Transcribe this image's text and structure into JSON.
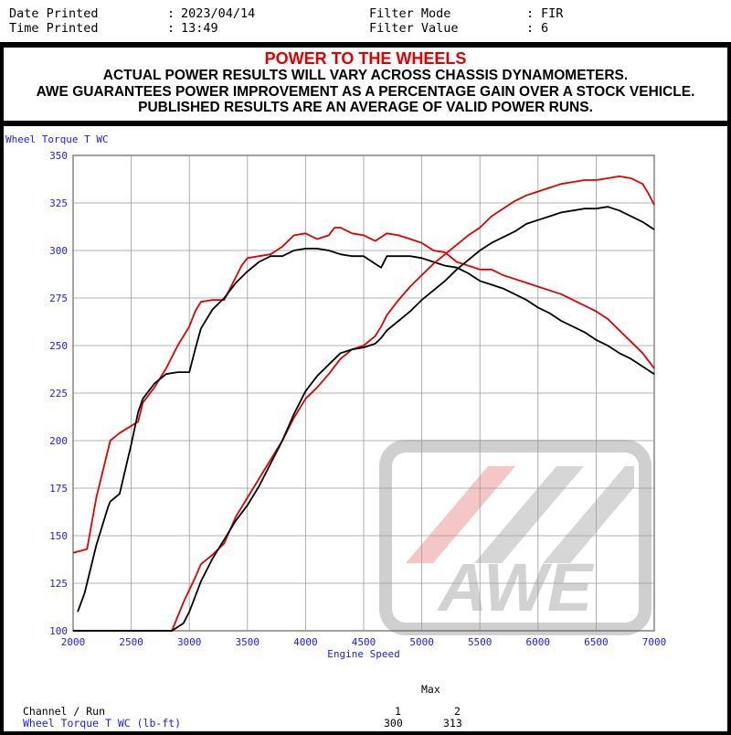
{
  "header": {
    "date_label": "Date Printed",
    "date_value": "2023/04/14",
    "time_label": "Time Printed",
    "time_value": "13:49",
    "filter_mode_label": "Filter Mode",
    "filter_mode_value": "FIR",
    "filter_value_label": "Filter Value",
    "filter_value_value": "6",
    "colon": ":"
  },
  "banner": {
    "title": "POWER TO THE WHEELS",
    "line1": "ACTUAL POWER RESULTS WILL VARY ACROSS CHASSIS DYNAMOMETERS.",
    "line2": "AWE GUARANTEES POWER IMPROVEMENT AS A PERCENTAGE GAIN OVER A STOCK VEHICLE.",
    "line3": "PUBLISHED RESULTS ARE AN AVERAGE OF VALID POWER RUNS."
  },
  "watermark": {
    "text": "AWE"
  },
  "colors": {
    "red": "#e00000",
    "black": "#000000",
    "axis_label": "#1a1aff"
  },
  "chart_data": {
    "type": "line",
    "ylabel": "Wheel Torque T WC",
    "xlabel": "Engine Speed",
    "xlim": [
      2000,
      7000
    ],
    "ylim": [
      100,
      350
    ],
    "x_ticks": [
      2000,
      2500,
      3000,
      3500,
      4000,
      4500,
      5000,
      5500,
      6000,
      6500,
      7000
    ],
    "y_ticks": [
      100,
      125,
      150,
      175,
      200,
      225,
      250,
      275,
      300,
      325,
      350
    ],
    "grid": true,
    "series": [
      {
        "color": "#e00000",
        "kind": "torque",
        "x": [
          2000,
          2120,
          2200,
          2320,
          2400,
          2560,
          2600,
          2650,
          2700,
          2800,
          2900,
          3000,
          3050,
          3100,
          3200,
          3300,
          3400,
          3450,
          3500,
          3600,
          3700,
          3800,
          3900,
          4000,
          4100,
          4200,
          4250,
          4300,
          4400,
          4500,
          4600,
          4650,
          4700,
          4800,
          4900,
          5000,
          5100,
          5200,
          5300,
          5400,
          5500,
          5600,
          5700,
          5800,
          5900,
          6000,
          6100,
          6200,
          6300,
          6400,
          6500,
          6600,
          6700,
          6800,
          6900,
          6950,
          7000
        ],
        "y": [
          141,
          143,
          170,
          200,
          204,
          210,
          220,
          224,
          228,
          238,
          250,
          260,
          268,
          273,
          274,
          274,
          286,
          292,
          296,
          297,
          298,
          302,
          308,
          309,
          306,
          308,
          312,
          312,
          309,
          308,
          305,
          307,
          309,
          308,
          306,
          304,
          300,
          299,
          294,
          292,
          290,
          290,
          287,
          285,
          283,
          281,
          279,
          277,
          274,
          271,
          268,
          264,
          258,
          252,
          246,
          242,
          238
        ]
      },
      {
        "color": "#000000",
        "kind": "torque",
        "x": [
          2040,
          2100,
          2200,
          2300,
          2320,
          2400,
          2500,
          2560,
          2600,
          2700,
          2800,
          2900,
          3000,
          3050,
          3100,
          3200,
          3300,
          3400,
          3500,
          3600,
          3700,
          3800,
          3900,
          4000,
          4100,
          4200,
          4300,
          4400,
          4500,
          4600,
          4650,
          4700,
          4800,
          4900,
          5000,
          5100,
          5200,
          5300,
          5400,
          5500,
          5600,
          5700,
          5800,
          5900,
          6000,
          6100,
          6200,
          6300,
          6400,
          6500,
          6600,
          6700,
          6800,
          6900,
          7000
        ],
        "y": [
          110,
          120,
          145,
          165,
          168,
          172,
          198,
          215,
          222,
          230,
          235,
          236,
          236,
          248,
          259,
          269,
          275,
          283,
          289,
          294,
          297,
          297,
          300,
          301,
          301,
          300,
          298,
          297,
          297,
          293,
          291,
          297,
          297,
          297,
          296,
          294,
          292,
          291,
          288,
          284,
          282,
          280,
          277,
          274,
          270,
          267,
          263,
          260,
          257,
          253,
          250,
          246,
          243,
          239,
          235
        ]
      },
      {
        "color": "#e00000",
        "kind": "power",
        "x": [
          2000,
          2850,
          2950,
          3050,
          3100,
          3200,
          3300,
          3400,
          3500,
          3600,
          3700,
          3800,
          3900,
          4000,
          4100,
          4200,
          4300,
          4400,
          4500,
          4600,
          4650,
          4700,
          4800,
          4900,
          5000,
          5100,
          5200,
          5300,
          5400,
          5500,
          5600,
          5700,
          5800,
          5900,
          6000,
          6100,
          6200,
          6300,
          6400,
          6500,
          6600,
          6700,
          6800,
          6900,
          6950,
          7000
        ],
        "y": [
          100,
          100,
          115,
          128,
          135,
          140,
          146,
          160,
          170,
          180,
          190,
          200,
          212,
          222,
          228,
          235,
          243,
          248,
          250,
          255,
          260,
          266,
          274,
          281,
          287,
          293,
          298,
          303,
          308,
          312,
          318,
          322,
          326,
          329,
          331,
          333,
          335,
          336,
          337,
          337,
          338,
          339,
          338,
          335,
          330,
          324
        ]
      },
      {
        "color": "#000000",
        "kind": "power",
        "x": [
          2000,
          2850,
          2950,
          3000,
          3050,
          3100,
          3200,
          3300,
          3400,
          3500,
          3600,
          3700,
          3800,
          3900,
          4000,
          4100,
          4200,
          4300,
          4400,
          4500,
          4600,
          4650,
          4700,
          4800,
          4900,
          5000,
          5100,
          5200,
          5300,
          5400,
          5500,
          5600,
          5700,
          5800,
          5900,
          6000,
          6100,
          6200,
          6300,
          6400,
          6500,
          6600,
          6700,
          6800,
          6900,
          7000
        ],
        "y": [
          100,
          100,
          104,
          110,
          118,
          126,
          138,
          148,
          158,
          166,
          176,
          188,
          200,
          214,
          226,
          234,
          240,
          246,
          248,
          249,
          251,
          254,
          258,
          263,
          268,
          274,
          279,
          284,
          290,
          295,
          300,
          304,
          307,
          310,
          314,
          316,
          318,
          320,
          321,
          322,
          322,
          323,
          321,
          318,
          315,
          311
        ]
      }
    ]
  },
  "footer": {
    "max_label": "Max",
    "channel_label": "Channel / Run",
    "run_1": "1",
    "run_2": "2",
    "wt_label": "Wheel Torque T WC (lb-ft)",
    "wt_1": "300",
    "wt_2": "313"
  }
}
